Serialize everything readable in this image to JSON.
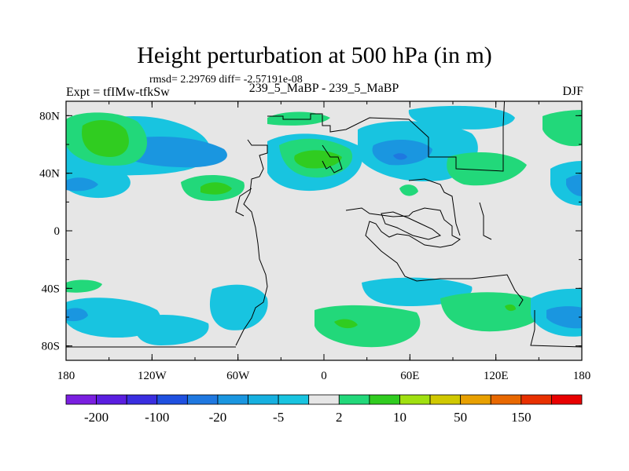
{
  "chart_data": {
    "type": "heatmap",
    "title": "Height perturbation at 500 hPa (in m)",
    "subtitle": "rmsd= 2.29769 diff= -2.57191e-08",
    "left_label": "Expt = tfIMw-tfkSw",
    "center_label": "239_5_MaBP - 239_5_MaBP",
    "right_label": "DJF",
    "x_axis": {
      "range": [
        -180,
        180
      ],
      "ticks": [
        -180,
        -120,
        -60,
        0,
        60,
        120,
        180
      ],
      "tick_labels": [
        "180",
        "120W",
        "60W",
        "0",
        "60E",
        "120E",
        "180"
      ]
    },
    "y_axis": {
      "range": [
        -90,
        90
      ],
      "ticks": [
        80,
        40,
        0,
        -40,
        -80
      ],
      "tick_labels": [
        "80N",
        "40N",
        "0",
        "40S",
        "80S"
      ]
    },
    "colorbar": {
      "colors": [
        "#7a1fe0",
        "#5a1ee0",
        "#3a2ee0",
        "#1f50e0",
        "#1f78e0",
        "#1a96e0",
        "#16b0e0",
        "#18c4e0",
        "#e6e6e6",
        "#22d87a",
        "#30cc20",
        "#a0e010",
        "#d0c800",
        "#e8a000",
        "#e86800",
        "#e83000",
        "#e80000"
      ],
      "labels": [
        "-200",
        "-100",
        "-20",
        "-5",
        "2",
        "10",
        "50",
        "150"
      ]
    },
    "fields": [
      {
        "lon": -145,
        "lat": 63,
        "value": 7
      },
      {
        "lon": -85,
        "lat": 50,
        "value": -5
      },
      {
        "lon": -75,
        "lat": 30,
        "value": 5
      },
      {
        "lon": -170,
        "lat": 30,
        "value": -5
      },
      {
        "lon": 5,
        "lat": 50,
        "value": 7
      },
      {
        "lon": 55,
        "lat": 55,
        "value": -5
      },
      {
        "lon": -20,
        "lat": 78,
        "value": 5
      },
      {
        "lon": 100,
        "lat": 45,
        "value": 3
      },
      {
        "lon": 170,
        "lat": 32,
        "value": -3
      },
      {
        "lon": -150,
        "lat": -58,
        "value": -4
      },
      {
        "lon": -100,
        "lat": -65,
        "value": -3
      },
      {
        "lon": 20,
        "lat": -63,
        "value": 6
      },
      {
        "lon": 65,
        "lat": -38,
        "value": -3
      },
      {
        "lon": 160,
        "lat": -58,
        "value": -5
      }
    ]
  }
}
